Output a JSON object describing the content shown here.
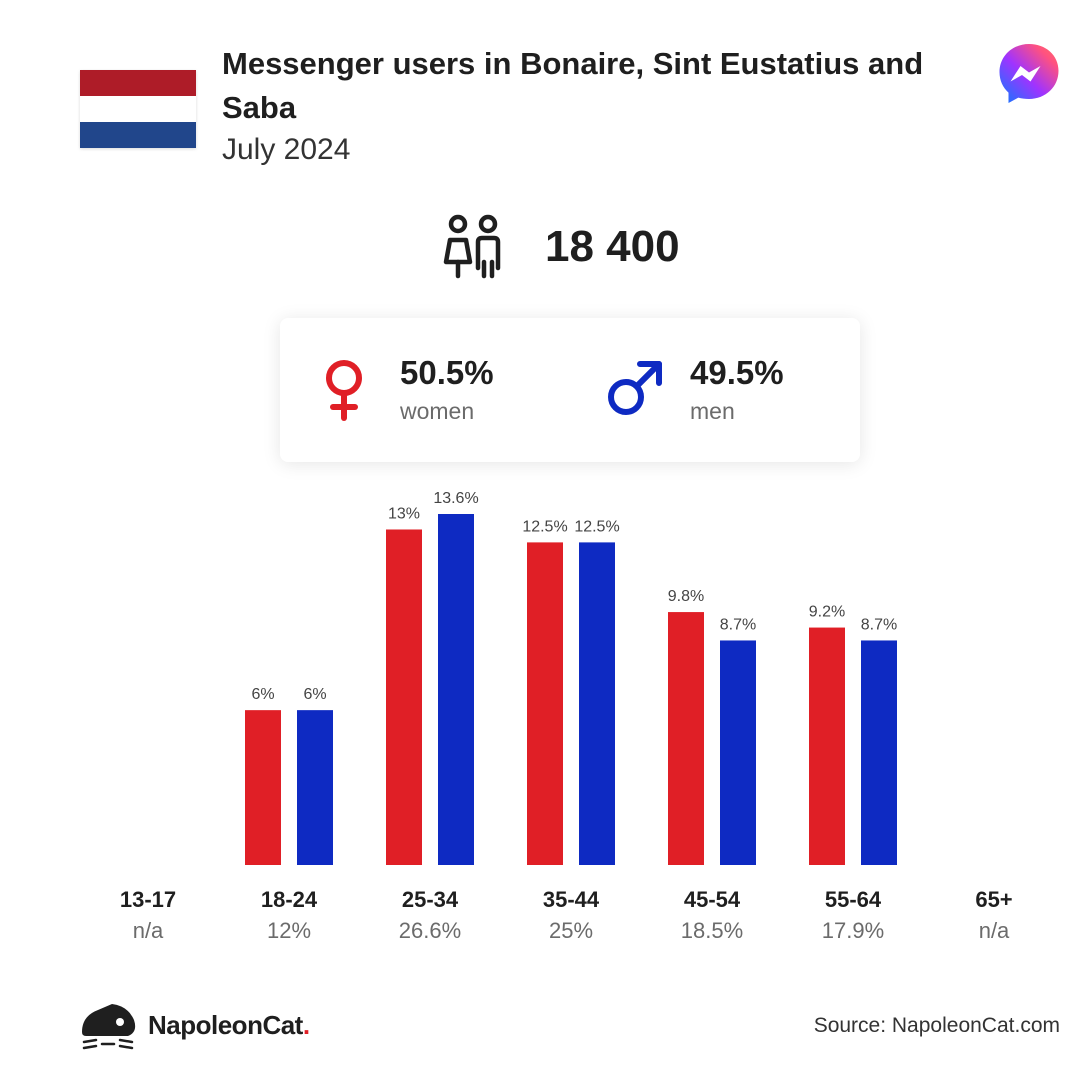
{
  "header": {
    "title": "Messenger users in Bonaire, Sint Eustatius and Saba",
    "subtitle": "July 2024",
    "flag_colors": [
      "#ae1c28",
      "#ffffff",
      "#21468b"
    ],
    "app_icon": "messenger-logo-icon"
  },
  "total": {
    "value": "18 400",
    "icon": "people-icon"
  },
  "gender": {
    "women": {
      "pct": "50.5%",
      "label": "women",
      "icon": "female-symbol-icon",
      "color": "#e01f26"
    },
    "men": {
      "pct": "49.5%",
      "label": "men",
      "icon": "male-symbol-icon",
      "color": "#0e2ac2"
    }
  },
  "chart_data": {
    "type": "bar",
    "categories": [
      "13-17",
      "18-24",
      "25-34",
      "35-44",
      "45-54",
      "55-64",
      "65+"
    ],
    "group_totals": [
      "n/a",
      "12%",
      "26.6%",
      "25%",
      "18.5%",
      "17.9%",
      "n/a"
    ],
    "series": [
      {
        "name": "women",
        "color": "#e01f26",
        "values": [
          null,
          6,
          13,
          12.5,
          9.8,
          9.2,
          null
        ],
        "labels": [
          "",
          "6%",
          "13%",
          "12.5%",
          "9.8%",
          "9.2%",
          ""
        ]
      },
      {
        "name": "men",
        "color": "#0e2ac2",
        "values": [
          null,
          6,
          13.6,
          12.5,
          8.7,
          8.7,
          null
        ],
        "labels": [
          "",
          "6%",
          "13.6%",
          "12.5%",
          "8.7%",
          "8.7%",
          ""
        ]
      }
    ],
    "ylim": [
      0,
      13.6
    ],
    "grid": false,
    "legend": "none"
  },
  "footer": {
    "brand": "NapoleonCat",
    "brand_dot": ".",
    "source": "Source: NapoleonCat.com"
  }
}
